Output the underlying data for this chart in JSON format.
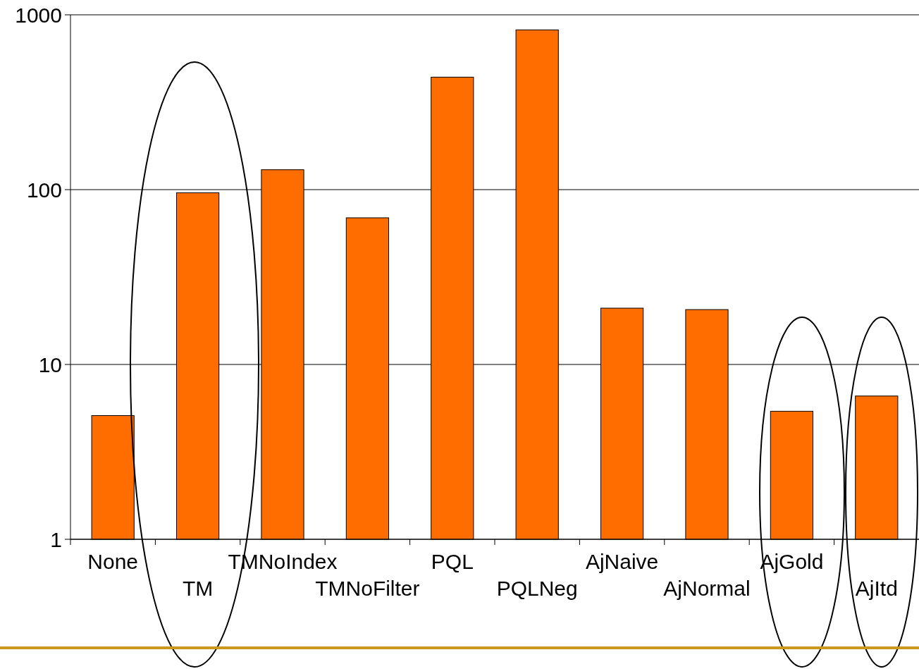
{
  "chart_data": {
    "type": "bar",
    "categories": [
      "None",
      "TM",
      "TMNoIndex",
      "TMNoFilter",
      "PQL",
      "PQLNeg",
      "AjNaive",
      "AjNormal",
      "AjGold",
      "AjItd"
    ],
    "values": [
      5.1,
      96,
      130,
      69,
      440,
      820,
      21,
      20.6,
      5.4,
      6.6
    ],
    "color": "#ff6d00",
    "log": true,
    "ylim": [
      1,
      1000
    ],
    "yticks": [
      1,
      10,
      100,
      1000
    ],
    "grid": "y"
  }
}
